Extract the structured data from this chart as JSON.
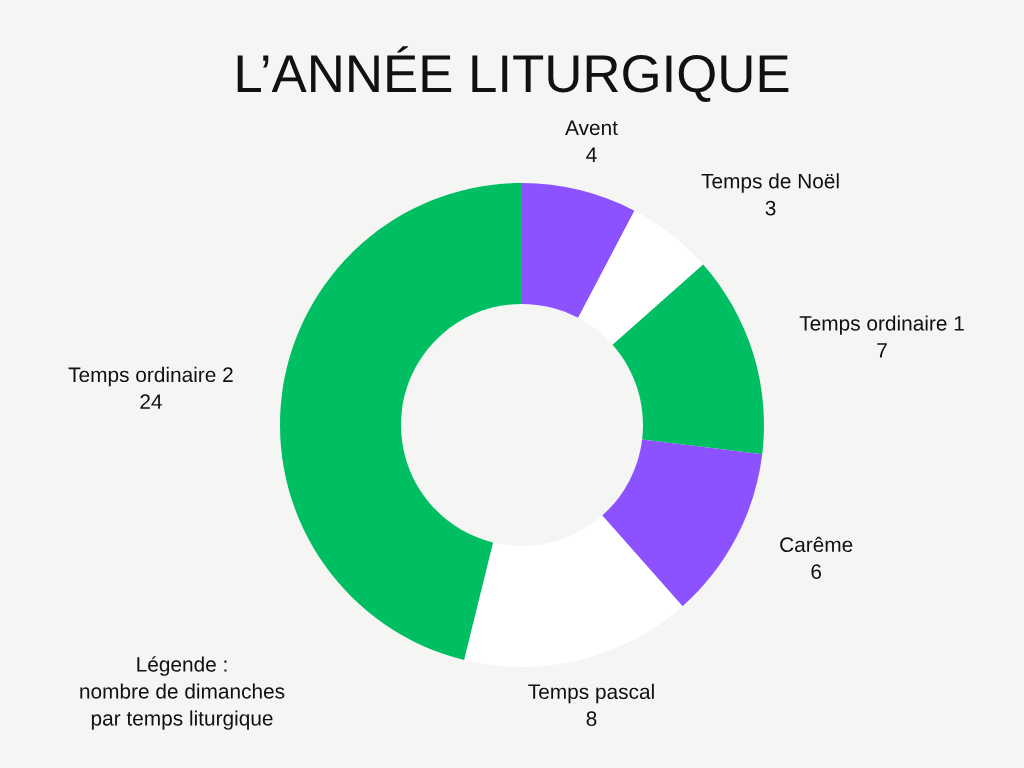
{
  "chart_data": {
    "type": "donut",
    "title": "L’ANNÉE LITURGIQUE",
    "categories": [
      "Avent",
      "Temps de Noël",
      "Temps ordinaire 1",
      "Carême",
      "Temps pascal",
      "Temps ordinaire 2"
    ],
    "values": [
      4,
      3,
      7,
      6,
      8,
      24
    ],
    "colors": [
      "#8c52ff",
      "#ffffff",
      "#00bf63",
      "#8c52ff",
      "#ffffff",
      "#00bf63"
    ],
    "data_labels": true,
    "annotations": [
      "Légende :\nnombre de dimanches\npar temps liturgique"
    ]
  }
}
